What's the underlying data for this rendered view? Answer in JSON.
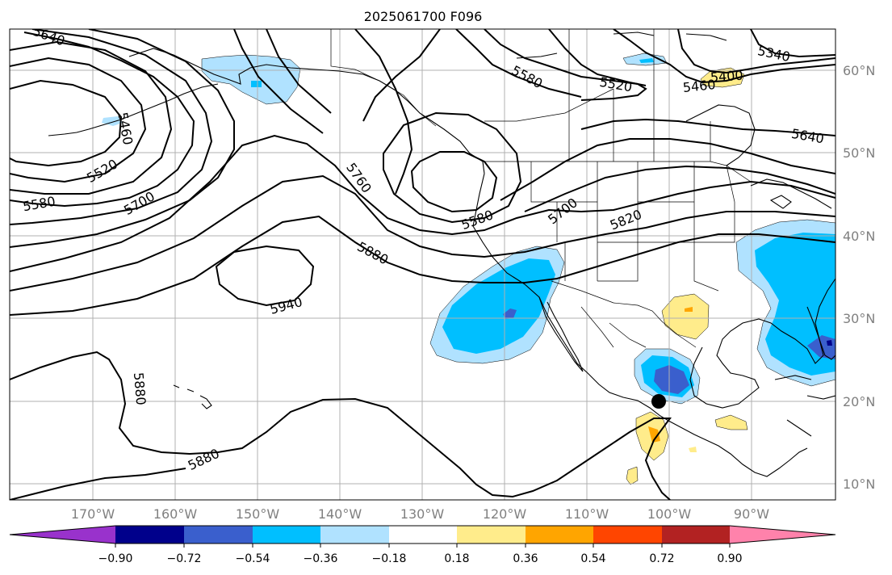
{
  "title": "2025061700 F096",
  "lon_labels": [
    "170°W",
    "160°W",
    "150°W",
    "140°W",
    "130°W",
    "120°W",
    "110°W",
    "100°W",
    "90°W"
  ],
  "lat_labels": [
    "10°N",
    "20°N",
    "30°N",
    "40°N",
    "50°N",
    "60°N"
  ],
  "colorbar": {
    "tick_labels": [
      "−0.90",
      "−0.72",
      "−0.54",
      "−0.36",
      "−0.18",
      "0.18",
      "0.36",
      "0.54",
      "0.72",
      "0.90"
    ],
    "colors": [
      "#9932cc",
      "#00008b",
      "#3a5fcd",
      "#00bfff",
      "#b0e2ff",
      "#ffffff",
      "#ffec8b",
      "#ffa500",
      "#ff4500",
      "#b22222",
      "#ff82ab"
    ]
  },
  "contour_labels": {
    "c5640_nw": "5640",
    "c5460_w": "5460",
    "c5520_w": "5520",
    "c5580_w": "5580",
    "c5700_w": "5700",
    "c5760": "5760",
    "c5580_low": "5580",
    "c5700_e": "5700",
    "c5820": "5820",
    "c5880_n": "5880",
    "c5940": "5940",
    "c5880_sw": "5880",
    "c5880_s": "5880",
    "c5580_ne": "5580",
    "c5520_ne": "5520",
    "c5460_ne": "5460",
    "c5400": "5400",
    "c5340": "5340",
    "c5640_e": "5640"
  },
  "marker": "black-dot"
}
